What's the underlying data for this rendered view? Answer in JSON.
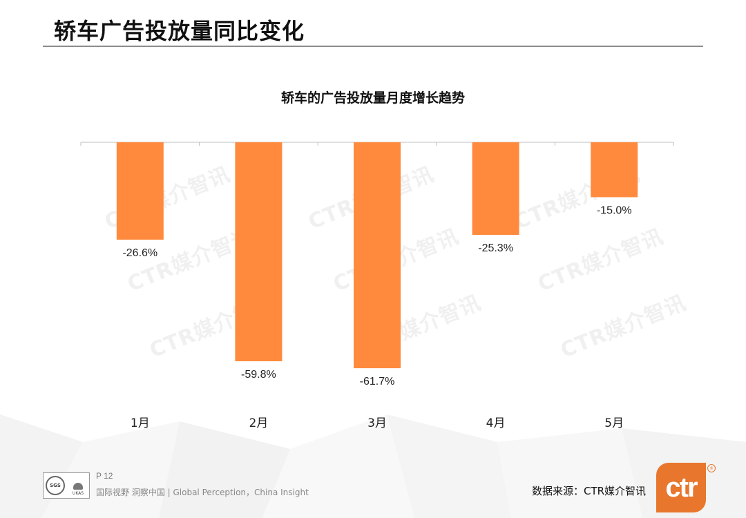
{
  "slide": {
    "title": "轿车广告投放量同比变化",
    "page_number": "P 12",
    "slogan": "国际视野  洞察中国 |  Global Perception，China Insight",
    "source": "数据来源：CTR媒介智讯",
    "watermark_text": "CTR媒介智讯",
    "cert_logo": {
      "sgs": "SGS",
      "ukas": "UKAS"
    },
    "brand_logo": {
      "text": "ctr",
      "reg_mark": "®",
      "color": "#e8762c"
    }
  },
  "chart_data": {
    "type": "bar",
    "title": "轿车的广告投放量月度增长趋势",
    "categories": [
      "1月",
      "2月",
      "3月",
      "4月",
      "5月"
    ],
    "values": [
      -26.6,
      -59.8,
      -61.7,
      -25.3,
      -15.0
    ],
    "value_labels": [
      "-26.6%",
      "-59.8%",
      "-61.7%",
      "-25.3%",
      "-15.0%"
    ],
    "xlabel": "",
    "ylabel": "",
    "ylim": [
      -63,
      0
    ],
    "grid": false,
    "bar_color": "#ff8a3d",
    "axis_color": "#bfbfbf"
  }
}
